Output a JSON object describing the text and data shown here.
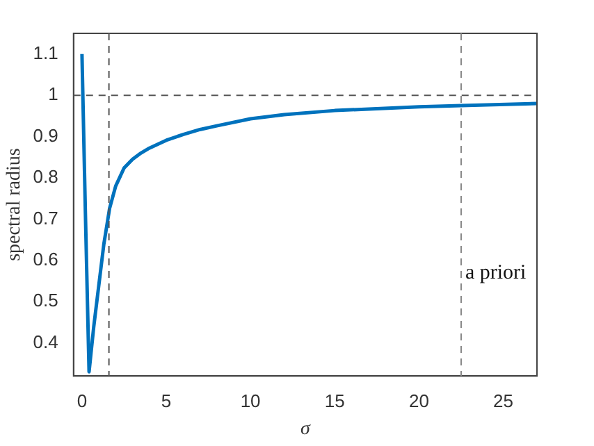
{
  "chart_data": {
    "type": "line",
    "xlabel": "σ",
    "ylabel": "spectral radius",
    "xlim": [
      -0.5,
      27
    ],
    "ylim": [
      0.32,
      1.15
    ],
    "xticks": [
      0,
      5,
      10,
      15,
      20,
      25
    ],
    "yticks": [
      0.4,
      0.5,
      0.6,
      0.7,
      0.8,
      0.9,
      1,
      1.1
    ],
    "series": [
      {
        "color": "#0072bd",
        "x": [
          0,
          0.2,
          0.42,
          0.7,
          1,
          1.3,
          1.64,
          2,
          2.5,
          3,
          3.5,
          4,
          5,
          6,
          7,
          8,
          10,
          12,
          15,
          20,
          22.5,
          27
        ],
        "values": [
          1.1,
          0.72,
          0.33,
          0.44,
          0.54,
          0.64,
          0.726,
          0.78,
          0.824,
          0.845,
          0.86,
          0.872,
          0.891,
          0.905,
          0.917,
          0.926,
          0.943,
          0.953,
          0.963,
          0.972,
          0.975,
          0.98
        ]
      }
    ],
    "ref_lines": [
      {
        "axis": "y",
        "value": 1,
        "color": "#555555",
        "line_style": "dashed"
      },
      {
        "axis": "x",
        "value": 1.6,
        "color": "#555555",
        "line_style": "dashed"
      },
      {
        "axis": "x",
        "value": 22.5,
        "label": "a priori",
        "color": "#888888",
        "line_style": "dashed"
      }
    ]
  }
}
